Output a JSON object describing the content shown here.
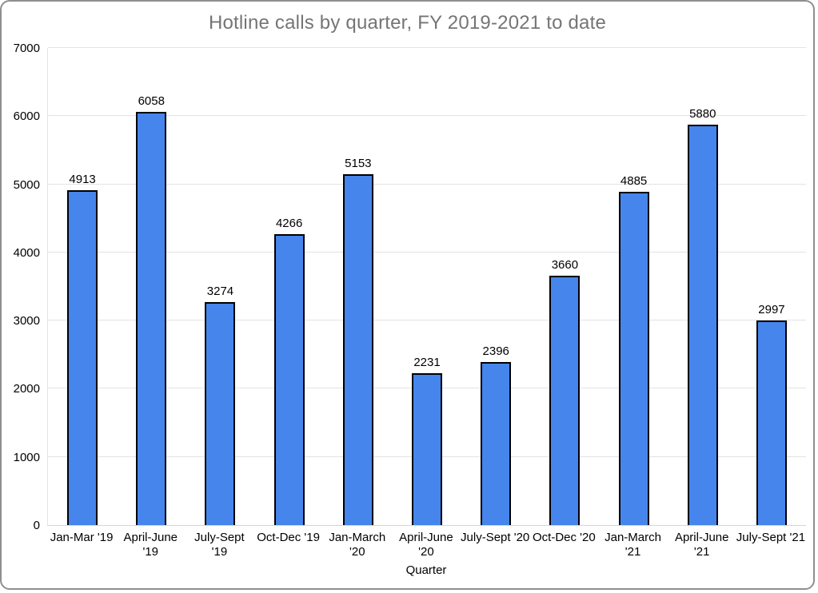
{
  "chart_data": {
    "type": "bar",
    "title": "Hotline calls by quarter, FY 2019-2021 to date",
    "xlabel": "Quarter",
    "ylabel": "",
    "categories": [
      "Jan-Mar '19",
      "April-June '19",
      "July-Sept '19",
      "Oct-Dec '19",
      "Jan-March '20",
      "April-June '20",
      "July-Sept '20",
      "Oct-Dec '20",
      "Jan-March '21",
      "April-June '21",
      "July-Sept '21"
    ],
    "category_lines": [
      [
        "Jan-Mar '19"
      ],
      [
        "April-June",
        "'19"
      ],
      [
        "July-Sept",
        "'19"
      ],
      [
        "Oct-Dec '19"
      ],
      [
        "Jan-March",
        "'20"
      ],
      [
        "April-June",
        "'20"
      ],
      [
        "July-Sept '20"
      ],
      [
        "Oct-Dec '20"
      ],
      [
        "Jan-March",
        "'21"
      ],
      [
        "April-June",
        "'21"
      ],
      [
        "July-Sept '21"
      ]
    ],
    "values": [
      4913,
      6058,
      3274,
      4266,
      5153,
      2231,
      2396,
      3660,
      4885,
      5880,
      2997
    ],
    "ylim": [
      0,
      7000
    ],
    "yticks": [
      0,
      1000,
      2000,
      3000,
      4000,
      5000,
      6000,
      7000
    ],
    "grid": true,
    "legend": "none",
    "colors": {
      "bar_fill": "#4685EB",
      "bar_border": "#000000",
      "gridline": "#e3e3e3",
      "title_text": "#757575",
      "label_text": "#000000",
      "card_border": "#8f8f8f"
    }
  }
}
